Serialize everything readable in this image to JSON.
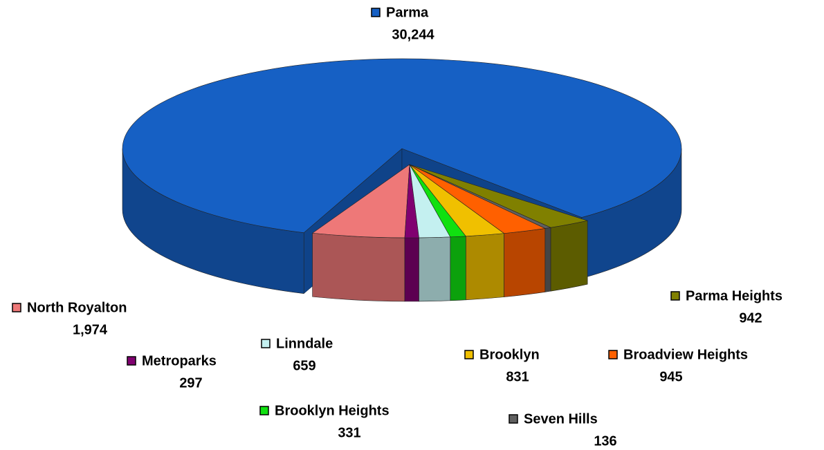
{
  "chart_data": {
    "type": "pie",
    "categories": [
      "Parma",
      "North Royalton",
      "Metroparks",
      "Linndale",
      "Brooklyn Heights",
      "Brooklyn",
      "Broadview Heights",
      "Seven Hills",
      "Parma Heights"
    ],
    "values": [
      30244,
      1974,
      297,
      659,
      331,
      831,
      945,
      136,
      942
    ],
    "value_labels": [
      "30,244",
      "1,974",
      "297",
      "659",
      "331",
      "831",
      "945",
      "136",
      "942"
    ],
    "colors": [
      "#1660c4",
      "#ee7878",
      "#800070",
      "#c4f0f0",
      "#10e010",
      "#f0c000",
      "#ff6000",
      "#606060",
      "#808000"
    ]
  }
}
